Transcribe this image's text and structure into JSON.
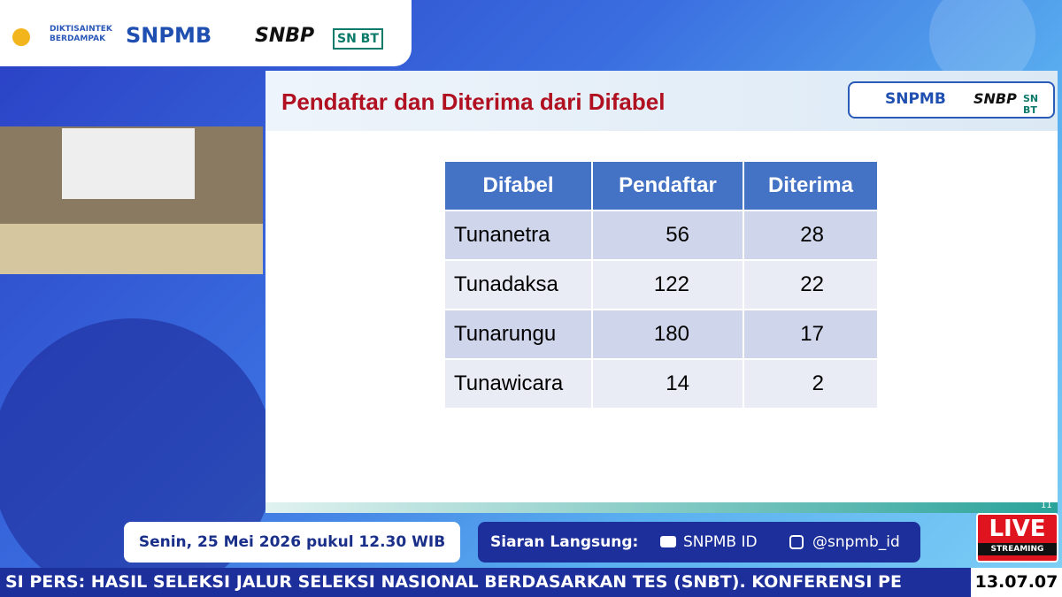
{
  "top_logos": {
    "ministry": "DIKTISAINTEK BERDAMPAK",
    "snpmb": "SNPMB",
    "snbp": "SNBP",
    "snbt": "SN BT"
  },
  "slide": {
    "title": "Pendaftar dan Diterima dari Difabel",
    "logos": {
      "snpmb": "SNPMB",
      "snbp": "SNBP",
      "snbt": "SN BT"
    },
    "table": {
      "header": [
        "Difabel",
        "Pendaftar",
        "Diterima"
      ],
      "rows": [
        [
          "Tunanetra",
          "56",
          "28"
        ],
        [
          "Tunadaksa",
          "122",
          "22"
        ],
        [
          "Tunarungu",
          "180",
          "17"
        ],
        [
          "Tunawicara",
          "14",
          "2"
        ]
      ]
    },
    "page_number": "11"
  },
  "lower_third": {
    "date": "Senin, 25 Mei 2026 pukul 12.30 WIB",
    "broadcast_label": "Siaran Langsung:",
    "youtube": "SNPMB ID",
    "instagram": "@snpmb_id"
  },
  "live_badge": {
    "live": "LIVE",
    "streaming": "STREAMING"
  },
  "ticker": {
    "text": "SI PERS: HASIL SELEKSI JALUR SELEKSI NASIONAL BERDASARKAN TES (SNBT). KONFERENSI PE",
    "clock": "13.07.07"
  }
}
